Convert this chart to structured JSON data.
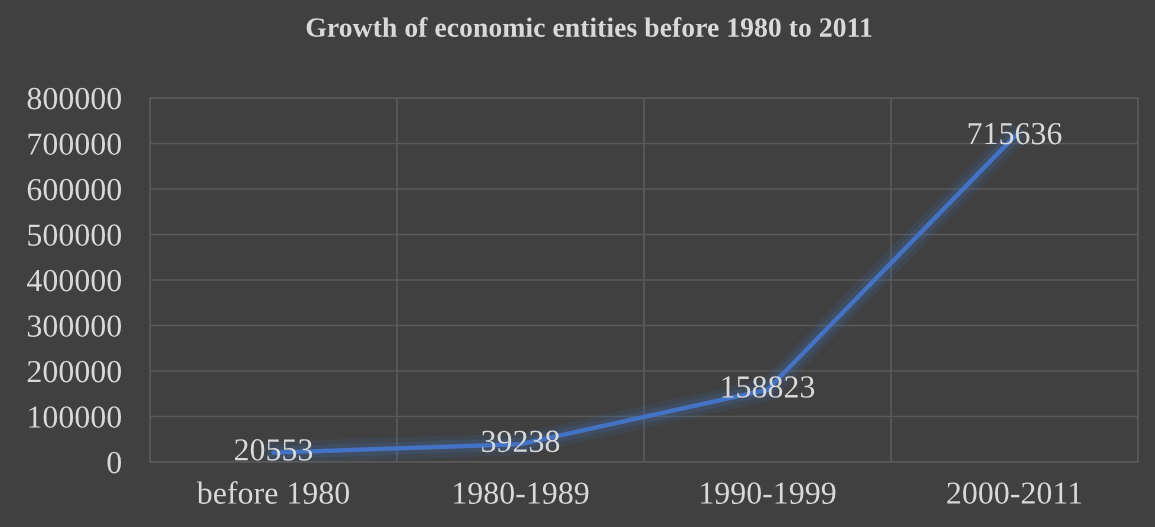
{
  "chart_data": {
    "type": "line",
    "title": "Growth of economic entities before 1980 to 2011",
    "categories": [
      "before 1980",
      "1980-1989",
      "1990-1999",
      "2000-2011"
    ],
    "series": [
      {
        "color": "#4472c4",
        "values": [
          20553,
          39238,
          158823,
          715636
        ]
      }
    ],
    "ylim": [
      0,
      800000
    ],
    "yticks": [
      0,
      100000,
      200000,
      300000,
      400000,
      500000,
      600000,
      700000,
      800000
    ],
    "grid": true,
    "data_labels": true,
    "line_style": "solid"
  }
}
